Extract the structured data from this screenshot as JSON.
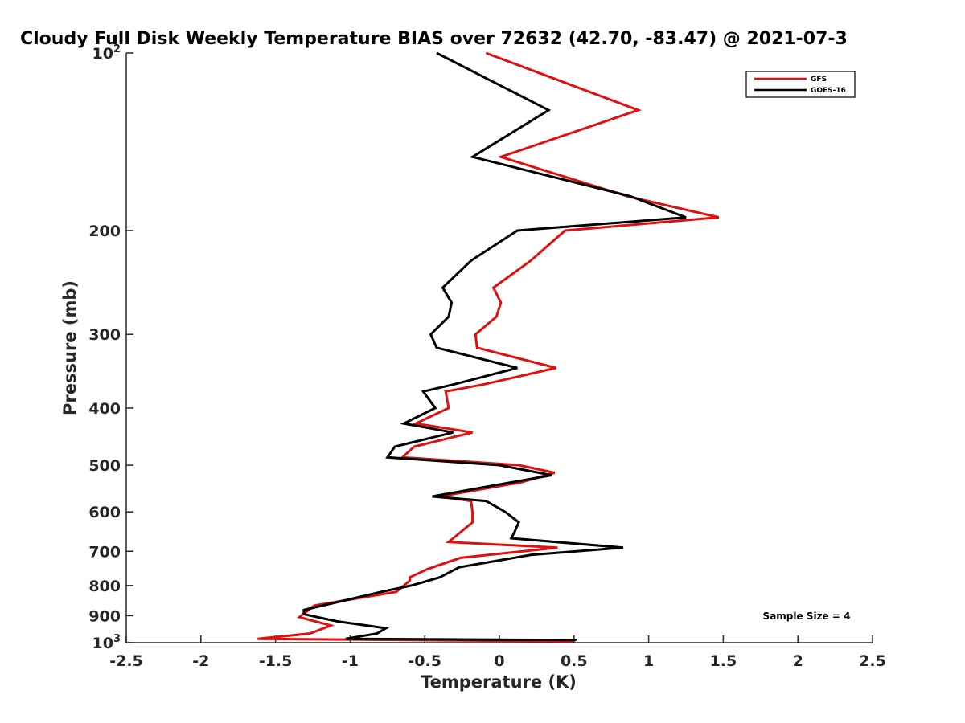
{
  "chart_data": {
    "type": "line",
    "title": "Cloudy Full Disk Weekly Temperature BIAS over 72632 (42.70, -83.47) @ 2021-07-3",
    "xlabel": "Temperature (K)",
    "ylabel": "Pressure (mb)",
    "xlim": [
      -2.5,
      2.5
    ],
    "ylim": [
      100,
      1000
    ],
    "y_scale": "log",
    "y_reversed": true,
    "grid": false,
    "legend_position": "top-right",
    "x_ticks": [
      "-2.5",
      "-2",
      "-1.5",
      "-1",
      "-0.5",
      "0",
      "0.5",
      "1",
      "1.5",
      "2",
      "2.5"
    ],
    "x_tick_values": [
      -2.5,
      -2,
      -1.5,
      -1,
      -0.5,
      0,
      0.5,
      1,
      1.5,
      2,
      2.5
    ],
    "y_ticks_plain": [
      {
        "value": 200,
        "label": "200"
      },
      {
        "value": 300,
        "label": "300"
      },
      {
        "value": 400,
        "label": "400"
      },
      {
        "value": 500,
        "label": "500"
      },
      {
        "value": 600,
        "label": "600"
      },
      {
        "value": 700,
        "label": "700"
      },
      {
        "value": 800,
        "label": "800"
      },
      {
        "value": 900,
        "label": "900"
      }
    ],
    "y_ticks_power": [
      {
        "value": 100,
        "base": "10",
        "exp": "2"
      },
      {
        "value": 1000,
        "base": "10",
        "exp": "3"
      }
    ],
    "annotation": "Sample Size = 4",
    "series": [
      {
        "name": "GFS",
        "color": "#e01010",
        "points": [
          [
            -0.09,
            100
          ],
          [
            0.93,
            125
          ],
          [
            0.01,
            150
          ],
          [
            0.86,
            175
          ],
          [
            1.47,
            190
          ],
          [
            0.44,
            200
          ],
          [
            0.21,
            225
          ],
          [
            -0.04,
            250
          ],
          [
            0.01,
            265
          ],
          [
            -0.02,
            280
          ],
          [
            -0.16,
            300
          ],
          [
            -0.15,
            316
          ],
          [
            0.38,
            342
          ],
          [
            -0.11,
            365
          ],
          [
            -0.36,
            375
          ],
          [
            -0.34,
            400
          ],
          [
            -0.56,
            425
          ],
          [
            -0.18,
            440
          ],
          [
            -0.57,
            465
          ],
          [
            -0.65,
            485
          ],
          [
            0.13,
            500
          ],
          [
            0.37,
            515
          ],
          [
            0.14,
            535
          ],
          [
            -0.4,
            565
          ],
          [
            -0.19,
            575
          ],
          [
            -0.18,
            600
          ],
          [
            -0.18,
            625
          ],
          [
            -0.34,
            675
          ],
          [
            0.39,
            690
          ],
          [
            -0.26,
            718
          ],
          [
            -0.48,
            750
          ],
          [
            -0.6,
            775
          ],
          [
            -0.6,
            785
          ],
          [
            -0.69,
            820
          ],
          [
            -1.24,
            865
          ],
          [
            -1.34,
            905
          ],
          [
            -1.13,
            935
          ],
          [
            -1.27,
            965
          ],
          [
            -1.62,
            985
          ],
          [
            0.49,
            995
          ]
        ]
      },
      {
        "name": "GOES-16",
        "color": "#000000",
        "points": [
          [
            -0.42,
            100
          ],
          [
            0.33,
            125
          ],
          [
            -0.18,
            150
          ],
          [
            0.88,
            175
          ],
          [
            1.25,
            190
          ],
          [
            0.12,
            200
          ],
          [
            -0.19,
            225
          ],
          [
            -0.38,
            250
          ],
          [
            -0.32,
            265
          ],
          [
            -0.34,
            280
          ],
          [
            -0.46,
            300
          ],
          [
            -0.42,
            316
          ],
          [
            0.12,
            342
          ],
          [
            -0.31,
            365
          ],
          [
            -0.51,
            375
          ],
          [
            -0.43,
            400
          ],
          [
            -0.64,
            425
          ],
          [
            -0.31,
            440
          ],
          [
            -0.7,
            465
          ],
          [
            -0.75,
            485
          ],
          [
            0.0,
            500
          ],
          [
            0.35,
            520
          ],
          [
            -0.45,
            565
          ],
          [
            -0.09,
            575
          ],
          [
            0.04,
            600
          ],
          [
            0.13,
            625
          ],
          [
            0.1,
            650
          ],
          [
            0.08,
            665
          ],
          [
            0.83,
            690
          ],
          [
            0.21,
            710
          ],
          [
            -0.27,
            745
          ],
          [
            -0.4,
            775
          ],
          [
            -0.59,
            800
          ],
          [
            -0.79,
            820
          ],
          [
            -1.31,
            880
          ],
          [
            -1.31,
            895
          ],
          [
            -1.09,
            920
          ],
          [
            -0.76,
            945
          ],
          [
            -0.82,
            965
          ],
          [
            -1.03,
            985
          ],
          [
            0.51,
            990
          ],
          [
            0.51,
            993
          ]
        ]
      }
    ]
  }
}
